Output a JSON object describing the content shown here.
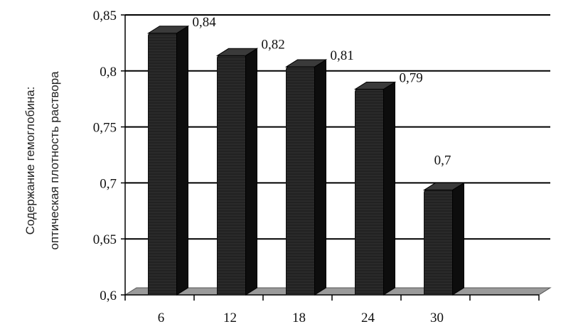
{
  "chart_data": {
    "type": "bar",
    "title": "",
    "xlabel": "",
    "ylabel_lines": [
      "Содержание гемоглобина:",
      "оптическая плотность раствора"
    ],
    "categories": [
      "6",
      "12",
      "18",
      "24",
      "30"
    ],
    "values": [
      0.84,
      0.82,
      0.81,
      0.79,
      0.7
    ],
    "value_labels": [
      "0,84",
      "0,82",
      "0,81",
      "0,79",
      "0,7"
    ],
    "ylim": [
      0.6,
      0.85
    ],
    "yticks": [
      0.6,
      0.65,
      0.7,
      0.75,
      0.8,
      0.85
    ],
    "ytick_labels": [
      "0,6",
      "0,65",
      "0,7",
      "0,75",
      "0,8",
      "0,85"
    ],
    "grid": true,
    "style": "3d-column",
    "colors": {
      "bar": "#2a2a2a",
      "bar_side": "#0d0d0d",
      "bar_top": "#3a3a3a",
      "floor": "#9a9a9a",
      "grid": "#000000"
    }
  }
}
